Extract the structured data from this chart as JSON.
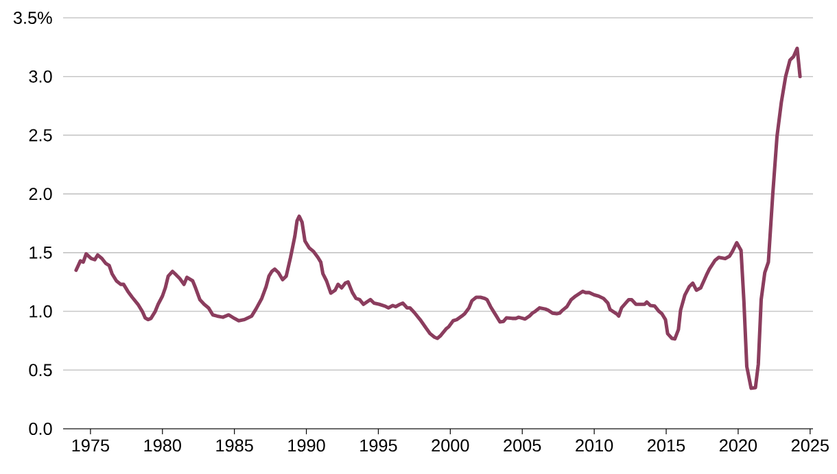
{
  "chart_data": {
    "type": "line",
    "color": "#8b3d5e",
    "grid": "y",
    "xlim": [
      1973.1,
      2025.2
    ],
    "ylim": [
      0,
      3.5
    ],
    "xticks": [
      1975,
      1980,
      1985,
      1990,
      1995,
      2000,
      2005,
      2010,
      2015,
      2020,
      2025
    ],
    "yticks": [
      {
        "value": 0,
        "label": "0.0"
      },
      0.5,
      {
        "value": 1,
        "label": "1.0"
      },
      1.5,
      {
        "value": 2,
        "label": "2.0"
      },
      2.5,
      {
        "value": 3,
        "label": "3.0"
      },
      {
        "value": 3.5,
        "label": "3.5%"
      }
    ],
    "x": [
      1974.0,
      1974.3,
      1974.5,
      1974.7,
      1975.05,
      1975.3,
      1975.5,
      1975.8,
      1976.05,
      1976.3,
      1976.5,
      1976.8,
      1977.1,
      1977.3,
      1977.6,
      1977.9,
      1978.3,
      1978.6,
      1978.8,
      1979.0,
      1979.2,
      1979.5,
      1979.7,
      1980.0,
      1980.2,
      1980.4,
      1980.7,
      1980.96,
      1981.2,
      1981.5,
      1981.7,
      1982.1,
      1982.3,
      1982.6,
      1982.9,
      1983.2,
      1983.5,
      1983.8,
      1984.2,
      1984.6,
      1985.0,
      1985.3,
      1985.7,
      1986.2,
      1986.5,
      1986.9,
      1987.2,
      1987.4,
      1987.6,
      1987.8,
      1988.06,
      1988.35,
      1988.6,
      1988.9,
      1989.2,
      1989.35,
      1989.5,
      1989.7,
      1989.9,
      1990.2,
      1990.5,
      1990.8,
      1991.0,
      1991.15,
      1991.4,
      1991.7,
      1992.0,
      1992.2,
      1992.45,
      1992.7,
      1992.9,
      1993.2,
      1993.45,
      1993.7,
      1993.97,
      1994.2,
      1994.45,
      1994.7,
      1995.07,
      1995.45,
      1995.7,
      1996.0,
      1996.2,
      1996.5,
      1996.7,
      1997.0,
      1997.2,
      1997.5,
      1997.9,
      1998.3,
      1998.6,
      1998.9,
      1999.1,
      1999.3,
      1999.7,
      1999.9,
      2000.2,
      2000.45,
      2000.8,
      2001.0,
      2001.3,
      2001.5,
      2001.8,
      2002.1,
      2002.4,
      2002.55,
      2002.8,
      2003.0,
      2003.2,
      2003.45,
      2003.7,
      2003.9,
      2004.3,
      2004.55,
      2004.75,
      2005.2,
      2005.5,
      2005.7,
      2005.9,
      2006.2,
      2006.6,
      2006.8,
      2007.1,
      2007.4,
      2007.6,
      2007.8,
      2008.1,
      2008.4,
      2008.7,
      2009.2,
      2009.4,
      2009.65,
      2010.0,
      2010.3,
      2010.65,
      2010.95,
      2011.1,
      2011.6,
      2011.7,
      2011.9,
      2012.4,
      2012.6,
      2012.9,
      2013.2,
      2013.5,
      2013.65,
      2013.9,
      2014.2,
      2014.5,
      2014.7,
      2014.95,
      2015.1,
      2015.4,
      2015.6,
      2015.85,
      2016.0,
      2016.3,
      2016.6,
      2016.85,
      2017.1,
      2017.4,
      2017.8,
      2018.0,
      2018.4,
      2018.65,
      2019.1,
      2019.4,
      2019.6,
      2019.9,
      2020.2,
      2020.4,
      2020.6,
      2020.9,
      2021.2,
      2021.4,
      2021.6,
      2021.85,
      2022.1,
      2022.4,
      2022.7,
      2023.0,
      2023.3,
      2023.6,
      2023.85,
      2024.1,
      2024.3
    ],
    "values": [
      1.35,
      1.43,
      1.42,
      1.49,
      1.45,
      1.44,
      1.48,
      1.45,
      1.41,
      1.39,
      1.32,
      1.26,
      1.23,
      1.23,
      1.17,
      1.12,
      1.06,
      1.0,
      0.945,
      0.93,
      0.94,
      1.0,
      1.06,
      1.13,
      1.2,
      1.3,
      1.34,
      1.31,
      1.28,
      1.23,
      1.29,
      1.26,
      1.2,
      1.1,
      1.06,
      1.03,
      0.97,
      0.96,
      0.95,
      0.97,
      0.94,
      0.92,
      0.93,
      0.96,
      1.02,
      1.11,
      1.21,
      1.3,
      1.34,
      1.36,
      1.33,
      1.27,
      1.3,
      1.46,
      1.64,
      1.77,
      1.81,
      1.76,
      1.6,
      1.54,
      1.51,
      1.46,
      1.42,
      1.32,
      1.26,
      1.155,
      1.18,
      1.23,
      1.2,
      1.24,
      1.25,
      1.16,
      1.11,
      1.1,
      1.06,
      1.08,
      1.1,
      1.07,
      1.06,
      1.045,
      1.03,
      1.05,
      1.04,
      1.06,
      1.07,
      1.03,
      1.03,
      0.99,
      0.93,
      0.86,
      0.81,
      0.78,
      0.77,
      0.79,
      0.85,
      0.87,
      0.92,
      0.93,
      0.96,
      0.98,
      1.03,
      1.09,
      1.12,
      1.12,
      1.11,
      1.1,
      1.04,
      1.0,
      0.96,
      0.91,
      0.915,
      0.945,
      0.94,
      0.94,
      0.95,
      0.935,
      0.96,
      0.985,
      1.0,
      1.03,
      1.02,
      1.01,
      0.985,
      0.98,
      0.985,
      1.01,
      1.04,
      1.1,
      1.13,
      1.17,
      1.16,
      1.16,
      1.14,
      1.13,
      1.11,
      1.07,
      1.015,
      0.975,
      0.96,
      1.03,
      1.1,
      1.1,
      1.06,
      1.06,
      1.06,
      1.08,
      1.05,
      1.045,
      1.0,
      0.98,
      0.93,
      0.81,
      0.77,
      0.765,
      0.845,
      1.01,
      1.14,
      1.21,
      1.24,
      1.18,
      1.2,
      1.31,
      1.36,
      1.435,
      1.46,
      1.45,
      1.47,
      1.51,
      1.585,
      1.52,
      1.085,
      0.53,
      0.345,
      0.35,
      0.55,
      1.1,
      1.33,
      1.42,
      1.99,
      2.49,
      2.78,
      3.0,
      3.14,
      3.17,
      3.24,
      3.0
    ]
  }
}
